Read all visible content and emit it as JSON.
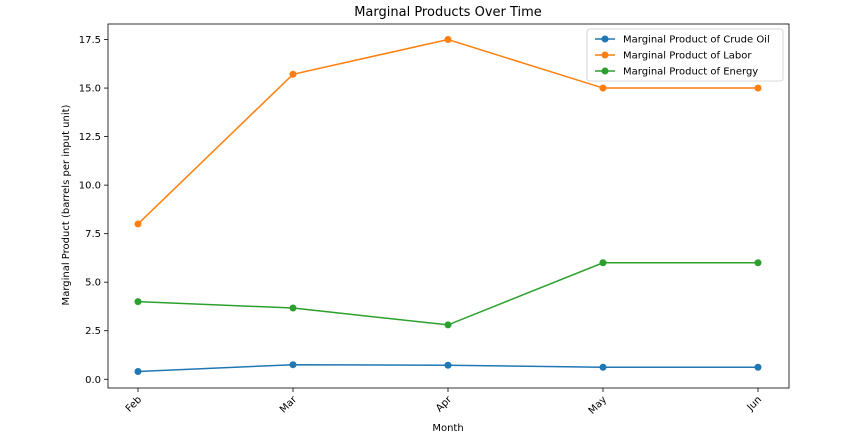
{
  "chart_data": {
    "type": "line",
    "title": "Marginal Products Over Time",
    "xlabel": "Month",
    "ylabel": "Marginal Product (barrels per input unit)",
    "categories": [
      "Feb",
      "Mar",
      "Apr",
      "May",
      "Jun"
    ],
    "ylim": [
      -0.45,
      18.3
    ],
    "yticks": [
      0.0,
      2.5,
      5.0,
      7.5,
      10.0,
      12.5,
      15.0,
      17.5
    ],
    "ytick_labels": [
      "0.0",
      "2.5",
      "5.0",
      "7.5",
      "10.0",
      "12.5",
      "15.0",
      "17.5"
    ],
    "grid": false,
    "legend_position": "top-right",
    "series": [
      {
        "name": "Marginal Product of Crude Oil",
        "color": "#1f77b4",
        "values": [
          0.4,
          0.75,
          0.72,
          0.62,
          0.62
        ]
      },
      {
        "name": "Marginal Product of Labor",
        "color": "#ff7f0e",
        "values": [
          8.0,
          15.71,
          17.5,
          15.0,
          15.0
        ]
      },
      {
        "name": "Marginal Product of Energy",
        "color": "#2ca02c",
        "values": [
          4.0,
          3.67,
          2.8,
          6.0,
          6.0
        ]
      }
    ]
  }
}
